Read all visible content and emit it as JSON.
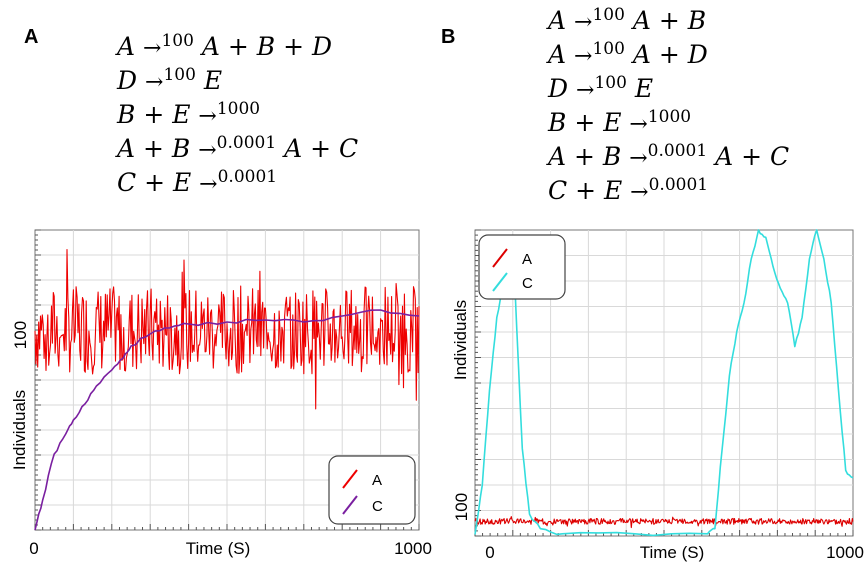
{
  "panels": [
    {
      "letter": "A",
      "reactions": [
        {
          "lhs": "A ",
          "arrow": "→",
          "rate": "100",
          "rhs": " A + B + D"
        },
        {
          "lhs": "D ",
          "arrow": "→",
          "rate": "100",
          "rhs": " E"
        },
        {
          "lhs": "B + E ",
          "arrow": "→",
          "rate": "1000",
          "rhs": ""
        },
        {
          "lhs": "A + B ",
          "arrow": "→",
          "rate": "0.0001",
          "rhs": " A + C"
        },
        {
          "lhs": "C + E ",
          "arrow": "→",
          "rate": "0.0001",
          "rhs": ""
        }
      ]
    },
    {
      "letter": "B",
      "reactions": [
        {
          "lhs": "A ",
          "arrow": "→",
          "rate": "100",
          "rhs": " A + B"
        },
        {
          "lhs": "A ",
          "arrow": "→",
          "rate": "100",
          "rhs": " A + D"
        },
        {
          "lhs": "D ",
          "arrow": "→",
          "rate": "100",
          "rhs": " E"
        },
        {
          "lhs": "B + E ",
          "arrow": "→",
          "rate": "1000",
          "rhs": ""
        },
        {
          "lhs": "A + B ",
          "arrow": "→",
          "rate": "0.0001",
          "rhs": " A + C"
        },
        {
          "lhs": "C + E ",
          "arrow": "→",
          "rate": "0.0001",
          "rhs": ""
        }
      ]
    }
  ],
  "chart_data": [
    {
      "type": "line",
      "xlabel": "Time (S)",
      "ylabel": "Individuals",
      "xlim": [
        0,
        1000
      ],
      "ylim": [
        0,
        150
      ],
      "x_ticks": [
        "0",
        "1000"
      ],
      "y_ticks": [
        "100"
      ],
      "grid": true,
      "legend_position": "bottom-right",
      "series": [
        {
          "name": "A",
          "color": "#ee0000",
          "style": "noisy",
          "x": [
            0,
            1000
          ],
          "y": [
            100,
            100
          ],
          "noise_amplitude": 22
        },
        {
          "name": "C",
          "color": "#7a1fa0",
          "style": "smooth",
          "x": [
            0,
            20,
            50,
            80,
            100,
            130,
            160,
            200,
            230,
            250,
            300,
            350,
            400,
            500,
            600,
            700,
            800,
            900,
            1000
          ],
          "y": [
            0,
            15,
            38,
            48,
            55,
            63,
            72,
            80,
            86,
            92,
            98,
            101,
            103,
            104,
            105,
            104,
            107,
            110,
            107
          ]
        }
      ]
    },
    {
      "type": "line",
      "xlabel": "Time (S)",
      "ylabel": "Individuals",
      "xlim": [
        -40,
        1000
      ],
      "ylim": [
        80,
        500
      ],
      "x_ticks": [
        "0",
        "1000"
      ],
      "y_ticks": [
        "100"
      ],
      "grid": true,
      "legend_position": "top-left",
      "series": [
        {
          "name": "A",
          "color": "#dd0000",
          "style": "noisy",
          "x": [
            -40,
            1000
          ],
          "y": [
            100,
            100
          ],
          "noise_amplitude": 4
        },
        {
          "name": "C",
          "color": "#33dddd",
          "style": "smooth",
          "x": [
            -40,
            -20,
            0,
            20,
            40,
            60,
            70,
            90,
            110,
            140,
            200,
            400,
            600,
            620,
            640,
            660,
            680,
            700,
            720,
            740,
            760,
            780,
            800,
            820,
            840,
            860,
            880,
            900,
            920,
            940,
            960,
            980,
            1000
          ],
          "y": [
            82,
            150,
            280,
            380,
            430,
            440,
            420,
            200,
            110,
            90,
            83,
            83,
            83,
            90,
            200,
            300,
            360,
            400,
            460,
            500,
            490,
            450,
            420,
            400,
            340,
            380,
            460,
            500,
            460,
            400,
            280,
            170,
            160
          ]
        }
      ]
    }
  ]
}
